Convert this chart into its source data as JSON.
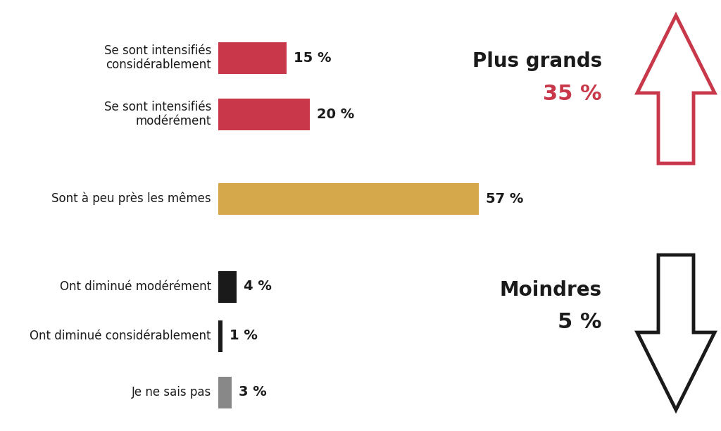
{
  "categories": [
    "Se sont intensifiés\nconsidérablement",
    "Se sont intensifiés\nmodérément",
    "Sont à peu près les mêmes",
    "Ont diminué modérément",
    "Ont diminué considérablement",
    "Je ne sais pas"
  ],
  "values": [
    15,
    20,
    57,
    4,
    1,
    3
  ],
  "colors": [
    "#c8374a",
    "#c8374a",
    "#d4a84b",
    "#1a1a1a",
    "#1a1a1a",
    "#888888"
  ],
  "label_texts": [
    "15 %",
    "20 %",
    "57 %",
    "4 %",
    "1 %",
    "3 %"
  ],
  "background_color": "#ffffff",
  "text_color": "#1a1a1a",
  "plus_grands_label": "Plus grands",
  "plus_grands_value": "35 %",
  "moindres_label": "Moindres",
  "moindres_value": "5 %",
  "arrow_up_color": "#c8374a",
  "arrow_down_color": "#1a1a1a",
  "bar_height": 0.55,
  "max_value": 57,
  "label_fontsize": 12,
  "value_fontsize": 14,
  "side_label_fontsize": 20,
  "side_value_fontsize": 22
}
